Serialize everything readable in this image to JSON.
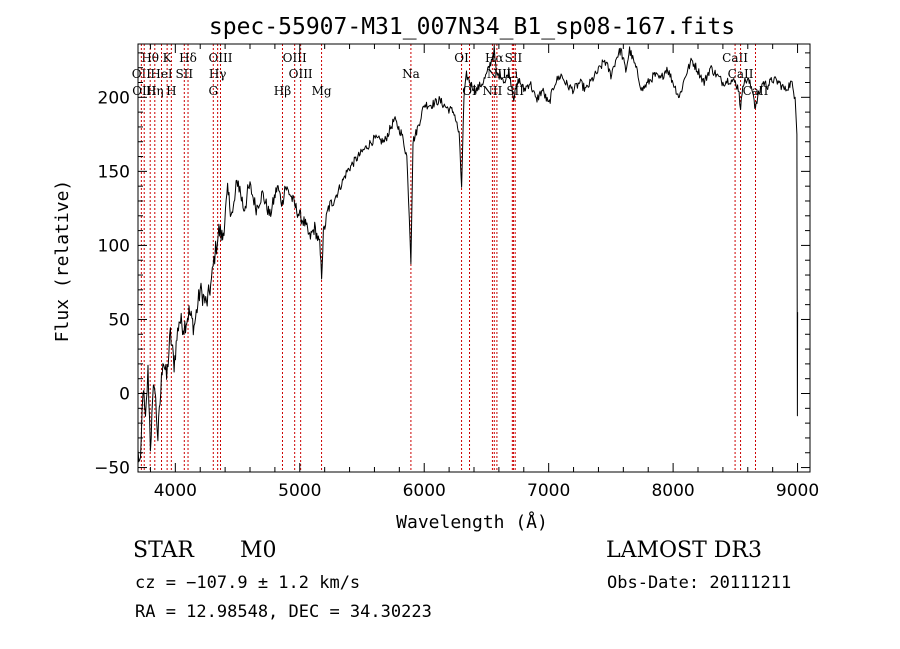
{
  "chart_data": {
    "type": "line",
    "title": "spec-55907-M31_007N34_B1_sp08-167.fits",
    "xlabel": "Wavelength (Å)",
    "ylabel": "Flux (relative)",
    "xlim": [
      3700,
      9100
    ],
    "ylim": [
      -53,
      236
    ],
    "x_ticks": [
      4000,
      5000,
      6000,
      7000,
      8000,
      9000
    ],
    "y_ticks": [
      -50,
      0,
      50,
      100,
      150,
      200
    ],
    "series": [
      {
        "name": "spectrum",
        "x": [
          3700,
          3720,
          3740,
          3760,
          3780,
          3800,
          3830,
          3860,
          3900,
          3930,
          3960,
          3990,
          4030,
          4070,
          4110,
          4150,
          4200,
          4250,
          4290,
          4310,
          4330,
          4350,
          4380,
          4420,
          4460,
          4500,
          4550,
          4600,
          4650,
          4700,
          4760,
          4820,
          4860,
          4880,
          4920,
          4970,
          5000,
          5040,
          5080,
          5120,
          5160,
          5175,
          5190,
          5230,
          5300,
          5380,
          5450,
          5520,
          5600,
          5680,
          5760,
          5820,
          5860,
          5880,
          5893,
          5910,
          5950,
          6000,
          6060,
          6120,
          6180,
          6240,
          6280,
          6300,
          6320,
          6340,
          6380,
          6420,
          6470,
          6500,
          6540,
          6562,
          6580,
          6620,
          6650,
          6680,
          6720,
          6760,
          6800,
          6850,
          6900,
          6950,
          7000,
          7050,
          7100,
          7150,
          7200,
          7250,
          7300,
          7350,
          7400,
          7450,
          7500,
          7550,
          7580,
          7620,
          7650,
          7700,
          7750,
          7800,
          7850,
          7900,
          7950,
          8000,
          8050,
          8100,
          8150,
          8200,
          8250,
          8300,
          8350,
          8400,
          8450,
          8500,
          8530,
          8542,
          8560,
          8600,
          8640,
          8662,
          8680,
          8720,
          8760,
          8800,
          8850,
          8900,
          8950,
          8980,
          8995,
          8999,
          9000
        ],
        "y": [
          -40,
          -50,
          5,
          -20,
          15,
          -35,
          10,
          -30,
          25,
          10,
          40,
          20,
          50,
          45,
          55,
          45,
          70,
          60,
          75,
          90,
          100,
          110,
          105,
          135,
          120,
          145,
          125,
          140,
          125,
          135,
          120,
          140,
          128,
          140,
          135,
          125,
          120,
          115,
          105,
          112,
          100,
          80,
          108,
          125,
          135,
          150,
          158,
          165,
          172,
          170,
          185,
          175,
          160,
          120,
          90,
          170,
          180,
          195,
          195,
          198,
          193,
          190,
          175,
          140,
          200,
          215,
          208,
          205,
          210,
          215,
          225,
          232,
          215,
          215,
          210,
          218,
          200,
          212,
          205,
          210,
          198,
          205,
          195,
          210,
          215,
          208,
          205,
          210,
          205,
          212,
          218,
          225,
          215,
          228,
          232,
          218,
          232,
          220,
          205,
          210,
          215,
          212,
          220,
          210,
          200,
          215,
          225,
          218,
          210,
          220,
          215,
          210,
          212,
          210,
          205,
          190,
          210,
          212,
          205,
          192,
          200,
          210,
          208,
          212,
          210,
          205,
          210,
          200,
          175,
          -15,
          55
        ]
      }
    ],
    "line_markers": [
      {
        "label": "Hθ",
        "x": 3798,
        "row": 1
      },
      {
        "label": "K",
        "x": 3934,
        "row": 1
      },
      {
        "label": "Hδ",
        "x": 4102,
        "row": 1
      },
      {
        "label": "OIII",
        "x": 4363,
        "row": 1
      },
      {
        "label": "OIII",
        "x": 4959,
        "row": 1
      },
      {
        "label": "OI",
        "x": 6300,
        "row": 1
      },
      {
        "label": "Hα",
        "x": 6563,
        "row": 1
      },
      {
        "label": "SII",
        "x": 6717,
        "row": 1
      },
      {
        "label": "CaII",
        "x": 8498,
        "row": 1
      },
      {
        "label": "OII",
        "x": 3727,
        "row": 2
      },
      {
        "label": "HeI",
        "x": 3889,
        "row": 2
      },
      {
        "label": "SII",
        "x": 4072,
        "row": 2
      },
      {
        "label": "Hγ",
        "x": 4340,
        "row": 2
      },
      {
        "label": "OIII",
        "x": 5007,
        "row": 2
      },
      {
        "label": "Na",
        "x": 5893,
        "row": 2
      },
      {
        "label": "NII",
        "x": 6584,
        "row": 2
      },
      {
        "label": "Li",
        "x": 6708,
        "row": 2
      },
      {
        "label": "CaII",
        "x": 8542,
        "row": 2
      },
      {
        "label": "OIII",
        "x": 3750,
        "row": 3
      },
      {
        "label": "Hη",
        "x": 3835,
        "row": 3
      },
      {
        "label": "H",
        "x": 3968,
        "row": 3
      },
      {
        "label": "G",
        "x": 4305,
        "row": 3
      },
      {
        "label": "Hβ",
        "x": 4861,
        "row": 3
      },
      {
        "label": "Mg",
        "x": 5175,
        "row": 3
      },
      {
        "label": "OI",
        "x": 6364,
        "row": 3
      },
      {
        "label": "NII",
        "x": 6548,
        "row": 3
      },
      {
        "label": "SII",
        "x": 6731,
        "row": 3
      },
      {
        "label": "CaII",
        "x": 8662,
        "row": 3
      }
    ]
  },
  "info": {
    "class": "STAR",
    "subclass": "M0",
    "survey": "LAMOST DR3",
    "cz": "cz = −107.9 ± 1.2 km/s",
    "obs_date": "Obs-Date: 20111211",
    "coords": "RA =  12.98548, DEC =  34.30223"
  }
}
